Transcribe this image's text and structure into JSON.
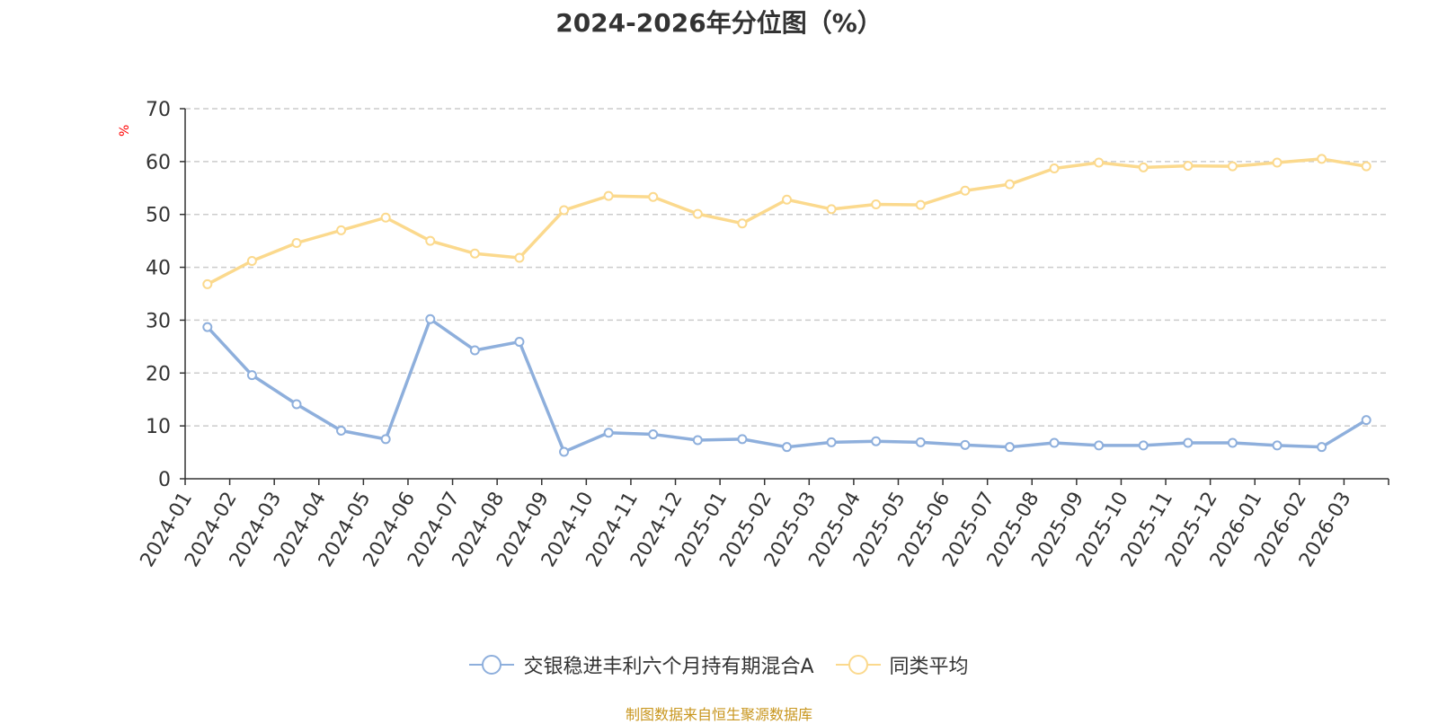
{
  "title": "2024-2026年分位图（%）",
  "source": "制图数据来自恒生聚源数据库",
  "chart_data": {
    "type": "line",
    "title": "2024-2026年分位图（%）",
    "ylabel": "%",
    "xlabel": "",
    "ylim": [
      0,
      70
    ],
    "yticks": [
      "0",
      "10",
      "20",
      "30",
      "40",
      "50",
      "60",
      "70"
    ],
    "grid": true,
    "legend_position": "bottom",
    "categories": [
      "2024-01",
      "2024-02",
      "2024-03",
      "2024-04",
      "2024-05",
      "2024-06",
      "2024-07",
      "2024-08",
      "2024-09",
      "2024-10",
      "2024-11",
      "2024-12",
      "2025-01",
      "2025-02",
      "2025-03",
      "2025-04",
      "2025-05",
      "2025-06",
      "2025-07",
      "2025-08",
      "2025-09",
      "2025-10",
      "2025-11",
      "2025-12",
      "2026-01",
      "2026-02",
      "2026-03"
    ],
    "series": [
      {
        "name": "交银稳进丰利六个月持有期混合A",
        "color": "#8eafdc",
        "values": [
          28.7,
          19.6,
          14.1,
          9.1,
          7.5,
          30.2,
          24.3,
          25.9,
          5.1,
          8.7,
          8.4,
          7.3,
          7.5,
          6.0,
          6.9,
          7.1,
          6.9,
          6.4,
          6.0,
          6.8,
          6.3,
          6.3,
          6.8,
          6.8,
          6.3,
          6.0,
          11.1
        ]
      },
      {
        "name": "同类平均",
        "color": "#fbd98d",
        "values": [
          36.8,
          41.2,
          44.6,
          47.0,
          49.4,
          45.0,
          42.6,
          41.8,
          50.8,
          53.5,
          53.3,
          50.1,
          48.3,
          52.8,
          51.0,
          51.9,
          51.8,
          54.5,
          55.7,
          58.7,
          59.8,
          58.9,
          59.2,
          59.1,
          59.8,
          60.5,
          59.1
        ]
      }
    ]
  }
}
